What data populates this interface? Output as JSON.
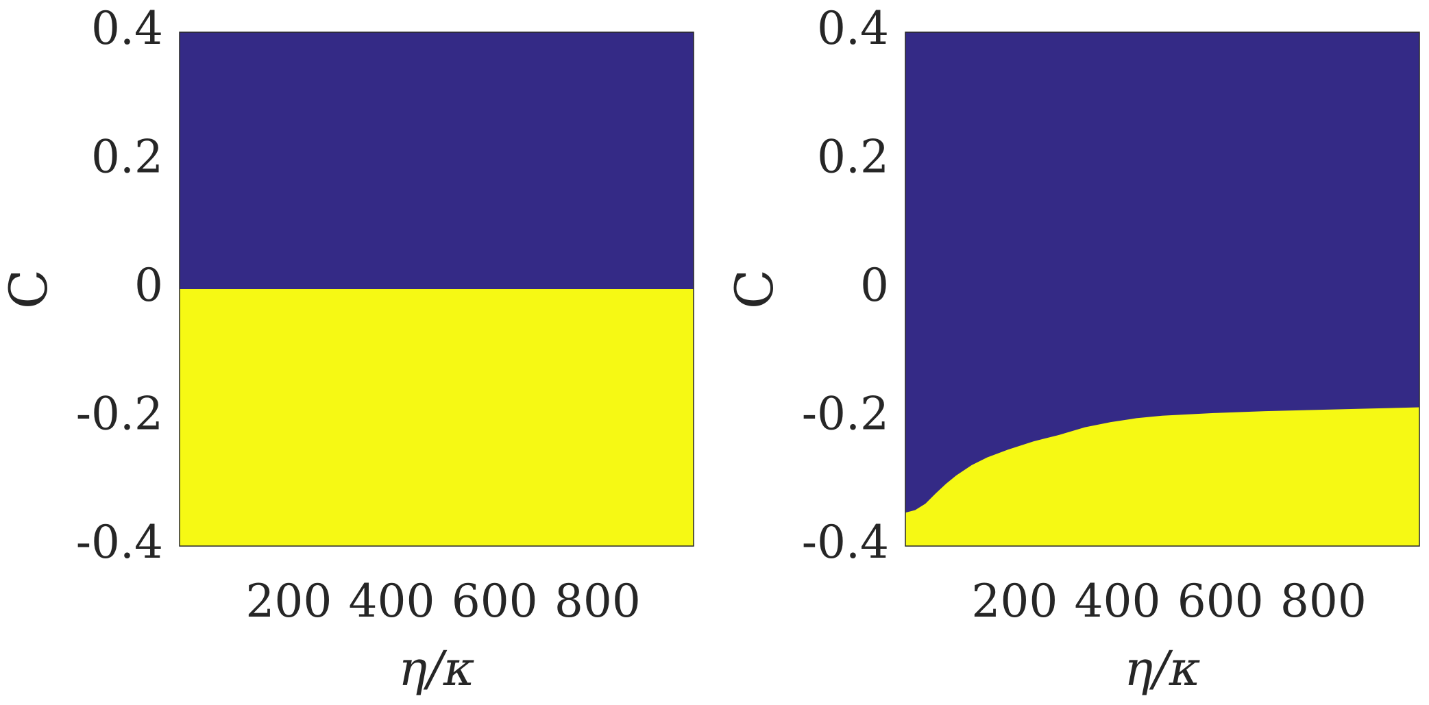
{
  "colors": {
    "region_upper": "#342A86",
    "region_lower": "#F6F914",
    "axis": "#262626",
    "background": "#ffffff"
  },
  "chart_data": [
    {
      "type": "heatmap",
      "xlabel": "η/κ",
      "ylabel": "C",
      "xlim": [
        1,
        1000
      ],
      "ylim": [
        -0.4,
        0.4
      ],
      "x_ticks": [
        200,
        400,
        600,
        800
      ],
      "x_tick_labels": [
        "200",
        "400",
        "600",
        "800"
      ],
      "y_ticks": [
        -0.4,
        -0.2,
        0,
        0.2,
        0.4
      ],
      "y_tick_labels": [
        "-0.4",
        "-0.2",
        "0",
        "0.2",
        "0.4"
      ],
      "grid": false,
      "boundary": {
        "x": [
          1,
          100,
          200,
          300,
          400,
          500,
          600,
          700,
          800,
          900,
          1000
        ],
        "y": [
          0,
          0,
          0,
          0,
          0,
          0,
          0,
          0,
          0,
          0,
          0
        ]
      }
    },
    {
      "type": "heatmap",
      "xlabel": "η/κ",
      "ylabel": "C",
      "xlim": [
        1,
        1000
      ],
      "ylim": [
        -0.4,
        0.4
      ],
      "x_ticks": [
        200,
        400,
        600,
        800
      ],
      "x_tick_labels": [
        "200",
        "400",
        "600",
        "800"
      ],
      "y_ticks": [
        -0.4,
        -0.2,
        0,
        0.2,
        0.4
      ],
      "y_tick_labels": [
        "-0.4",
        "-0.2",
        "0",
        "0.2",
        "0.4"
      ],
      "grid": false,
      "boundary": {
        "x": [
          1,
          20,
          40,
          60,
          80,
          100,
          130,
          160,
          200,
          250,
          300,
          350,
          400,
          450,
          500,
          600,
          700,
          800,
          900,
          1000
        ],
        "y": [
          -0.348,
          -0.344,
          -0.334,
          -0.318,
          -0.303,
          -0.29,
          -0.274,
          -0.262,
          -0.25,
          -0.237,
          -0.227,
          -0.215,
          -0.207,
          -0.201,
          -0.197,
          -0.193,
          -0.19,
          -0.188,
          -0.186,
          -0.184
        ]
      }
    }
  ]
}
